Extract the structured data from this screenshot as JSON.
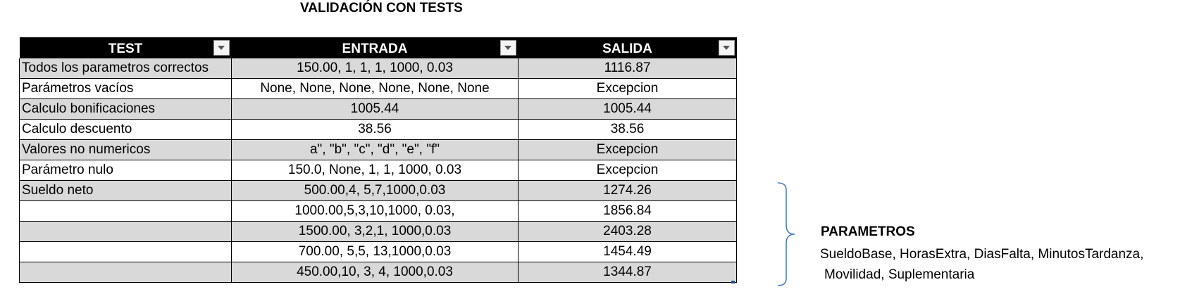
{
  "title": "VALIDACIÓN CON TESTS",
  "headers": [
    "TEST",
    "ENTRADA",
    "SALIDA"
  ],
  "rows": [
    {
      "test": "Todos los parametros correctos",
      "entrada": "150.00, 1, 1, 1, 1000, 0.03",
      "salida": "1116.87"
    },
    {
      "test": "Parámetros vacíos",
      "entrada": "None, None, None, None, None, None",
      "salida": "Excepcion"
    },
    {
      "test": "Calculo bonificaciones",
      "entrada": "1005.44",
      "salida": "1005.44"
    },
    {
      "test": "Calculo descuento",
      "entrada": "38.56",
      "salida": "38.56"
    },
    {
      "test": "Valores no numericos",
      "entrada": "a\", \"b\", \"c\", \"d\", \"e\", \"f\"",
      "salida": "Excepcion"
    },
    {
      "test": "Parámetro nulo",
      "entrada": "150.0, None, 1, 1, 1000, 0.03",
      "salida": "Excepcion"
    },
    {
      "test": "Sueldo neto",
      "entrada": "500.00,4, 5,7,1000,0.03",
      "salida": "1274.26"
    },
    {
      "test": "",
      "entrada": "1000.00,5,3,10,1000, 0.03,",
      "salida": "1856.84"
    },
    {
      "test": "",
      "entrada": "1500.00, 3,2,1, 1000,0.03",
      "salida": "2403.28"
    },
    {
      "test": "",
      "entrada": "700.00, 5,5, 13,1000,0.03",
      "salida": "1454.49"
    },
    {
      "test": "",
      "entrada": "450.00,10, 3, 4, 1000,0.03",
      "salida": "1344.87"
    }
  ],
  "parametros": {
    "title": "PARAMETROS",
    "line1": "SueldoBase, HorasExtra, DiasFalta, MinutosTardanza,",
    "line2": "Movilidad, Suplementaria"
  },
  "colors": {
    "header_bg": "#000000",
    "band_bg": "#d9d9d9",
    "brace": "#4a7fc1"
  },
  "icons": {
    "filter": "filter-dropdown-icon",
    "brace": "right-curly-brace"
  }
}
